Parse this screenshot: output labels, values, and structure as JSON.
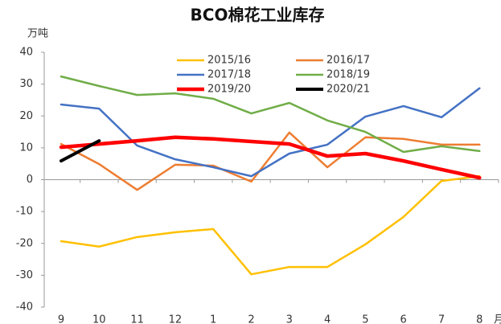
{
  "chart_data": {
    "type": "line",
    "title": "BCO棉花工业库存",
    "y_label": "万吨",
    "x_label": "月",
    "categories": [
      "9",
      "10",
      "11",
      "12",
      "1",
      "2",
      "3",
      "4",
      "5",
      "6",
      "7",
      "8"
    ],
    "ylim": [
      -40,
      40
    ],
    "yticks": [
      -40,
      -30,
      -20,
      -10,
      0,
      10,
      20,
      30,
      40
    ],
    "grid": false,
    "legend": "top",
    "series": [
      {
        "name": "2015/16",
        "color": "#ffc000",
        "line_width": 2.5,
        "values": [
          -19.3,
          -21,
          -18,
          -16.5,
          -15.5,
          -29.7,
          -27.4,
          -27.4,
          -20.3,
          -11.7,
          -0.4,
          1.1
        ]
      },
      {
        "name": "2016/17",
        "color": "#ed7d31",
        "line_width": 2.5,
        "values": [
          11.2,
          4.9,
          -3.2,
          4.7,
          4.4,
          -0.6,
          14.8,
          3.9,
          13.3,
          12.8,
          11,
          11
        ]
      },
      {
        "name": "2017/18",
        "color": "#4472c4",
        "line_width": 2.5,
        "values": [
          23.6,
          22.3,
          10.7,
          6.4,
          3.9,
          1.1,
          8.2,
          11,
          19.8,
          23.1,
          19.6,
          28.7
        ]
      },
      {
        "name": "2018/19",
        "color": "#70ad47",
        "line_width": 2.5,
        "values": [
          32.4,
          29.4,
          26.6,
          27.1,
          25.4,
          20.8,
          24.1,
          18.6,
          15,
          8.7,
          10.5,
          9
        ]
      },
      {
        "name": "2019/20",
        "color": "#ff0000",
        "line_width": 4.5,
        "values": [
          10.2,
          11.2,
          12.2,
          13.3,
          12.8,
          12,
          11.2,
          7.4,
          8.2,
          5.9,
          3.2,
          0.6
        ]
      },
      {
        "name": "2020/21",
        "color": "#000000",
        "line_width": 4,
        "values": [
          5.9,
          12.2,
          null,
          null,
          null,
          null,
          null,
          null,
          null,
          null,
          null,
          null
        ]
      }
    ]
  }
}
